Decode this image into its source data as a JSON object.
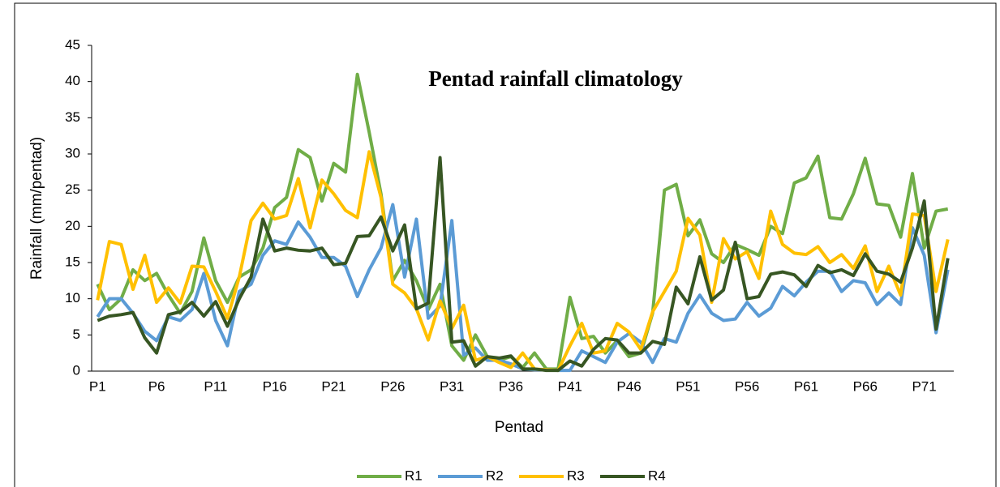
{
  "chart_data": {
    "type": "line",
    "title": "Pentad rainfall climatology",
    "x_label": "Pentad",
    "y_label": "Rainfall (mm/pentad)",
    "categories": [
      "P1",
      null,
      null,
      null,
      null,
      "P6",
      null,
      null,
      null,
      null,
      "P11",
      null,
      null,
      null,
      null,
      "P16",
      null,
      null,
      null,
      null,
      "P21",
      null,
      null,
      null,
      null,
      "P26",
      null,
      null,
      null,
      null,
      "P31",
      null,
      null,
      null,
      null,
      "P36",
      null,
      null,
      null,
      null,
      "P41",
      null,
      null,
      null,
      null,
      "P46",
      null,
      null,
      null,
      null,
      "P51",
      null,
      null,
      null,
      null,
      "P56",
      null,
      null,
      null,
      null,
      "P61",
      null,
      null,
      null,
      null,
      "P66",
      null,
      null,
      null,
      null,
      "P71",
      null,
      null
    ],
    "series": [
      {
        "name": "R1",
        "color": "#70ad47",
        "values": [
          12,
          8.5,
          10,
          14,
          12.5,
          13.5,
          10.5,
          8,
          11,
          18.4,
          12.5,
          9.5,
          13,
          14,
          17,
          22.6,
          24,
          30.6,
          29.5,
          23.5,
          28.7,
          27.5,
          41,
          33,
          24.5,
          12.5,
          15.3,
          12.5,
          8.5,
          12,
          3.5,
          1.5,
          5,
          2,
          1.5,
          2,
          0.5,
          2.5,
          0.3,
          0.3,
          10.2,
          4.5,
          4.8,
          2.5,
          4.2,
          2,
          2.5,
          8,
          25,
          25.8,
          18.7,
          20.9,
          16.2,
          15,
          17.5,
          16.8,
          16,
          20,
          19,
          26,
          26.7,
          29.7,
          21.2,
          21,
          24.5,
          29.4,
          23.1,
          22.9,
          18.5,
          27.3,
          17,
          22.1,
          22.4
        ]
      },
      {
        "name": "R2",
        "color": "#5b9bd5",
        "values": [
          7.5,
          10,
          10,
          8,
          5.5,
          4.2,
          7.5,
          7,
          8.5,
          13.5,
          7,
          3.5,
          11,
          12,
          16,
          18,
          17.5,
          20.6,
          18.5,
          15.7,
          15.7,
          14.5,
          10.3,
          14,
          17,
          23,
          13,
          21,
          7.3,
          9,
          20.8,
          2.2,
          3.2,
          1.5,
          1.5,
          1,
          0.3,
          0.2,
          0.2,
          0.1,
          0.1,
          2.8,
          2,
          1.2,
          4,
          5.2,
          4,
          1.2,
          4.5,
          4,
          8,
          10.5,
          8,
          7,
          7.2,
          9.5,
          7.6,
          8.7,
          11.7,
          10.4,
          12.3,
          13.8,
          13.8,
          11,
          12.5,
          12.2,
          9.2,
          10.8,
          9.2,
          19.8,
          16,
          5.3,
          14
        ]
      },
      {
        "name": "R3",
        "color": "#ffc000",
        "values": [
          9.8,
          17.9,
          17.5,
          11.3,
          16,
          9.5,
          11.5,
          9.4,
          14.5,
          14.4,
          11,
          7.3,
          13,
          20.8,
          23.2,
          21,
          21.5,
          26.6,
          19.8,
          26.4,
          24.5,
          22.2,
          21.2,
          30.3,
          24,
          12,
          10.8,
          8.6,
          4.3,
          9.7,
          5.9,
          9.1,
          1.5,
          2,
          1.2,
          0.5,
          2.5,
          0.3,
          0.2,
          0.1,
          3.5,
          6.6,
          2.5,
          2.8,
          6.6,
          5.4,
          3,
          8.2,
          11,
          13.8,
          21.1,
          18.8,
          9.5,
          18.3,
          15.5,
          16.5,
          12.8,
          22.1,
          17.5,
          16.3,
          16.1,
          17.2,
          15,
          16.1,
          14.2,
          17.3,
          11,
          14.5,
          10.5,
          21.7,
          21.5,
          11,
          18.2
        ]
      },
      {
        "name": "R4",
        "color": "#375623",
        "values": [
          7,
          7.6,
          7.8,
          8.1,
          4.6,
          2.5,
          7.8,
          8.2,
          9.5,
          7.6,
          9.6,
          6.2,
          10,
          13,
          21,
          16.6,
          17,
          16.7,
          16.6,
          17,
          14.7,
          14.9,
          18.6,
          18.7,
          21.3,
          16.6,
          20.2,
          8.6,
          9.4,
          29.5,
          4,
          4.2,
          0.7,
          2,
          1.8,
          2.1,
          0.3,
          0.3,
          0.1,
          0.1,
          1.4,
          0.7,
          3,
          4.5,
          4.3,
          2.5,
          2.5,
          4.1,
          3.7,
          11.6,
          9.3,
          15.8,
          9.8,
          11.2,
          17.8,
          10,
          10.3,
          13.4,
          13.7,
          13.3,
          11.7,
          14.6,
          13.6,
          14,
          13.2,
          16.2,
          13.8,
          13.4,
          12.3,
          17,
          23.5,
          5.8,
          15.6
        ]
      }
    ],
    "ylim": [
      0,
      45
    ],
    "yticks": [
      0,
      5,
      10,
      15,
      20,
      25,
      30,
      35,
      40,
      45
    ],
    "grid": false,
    "legend": "bottom"
  }
}
